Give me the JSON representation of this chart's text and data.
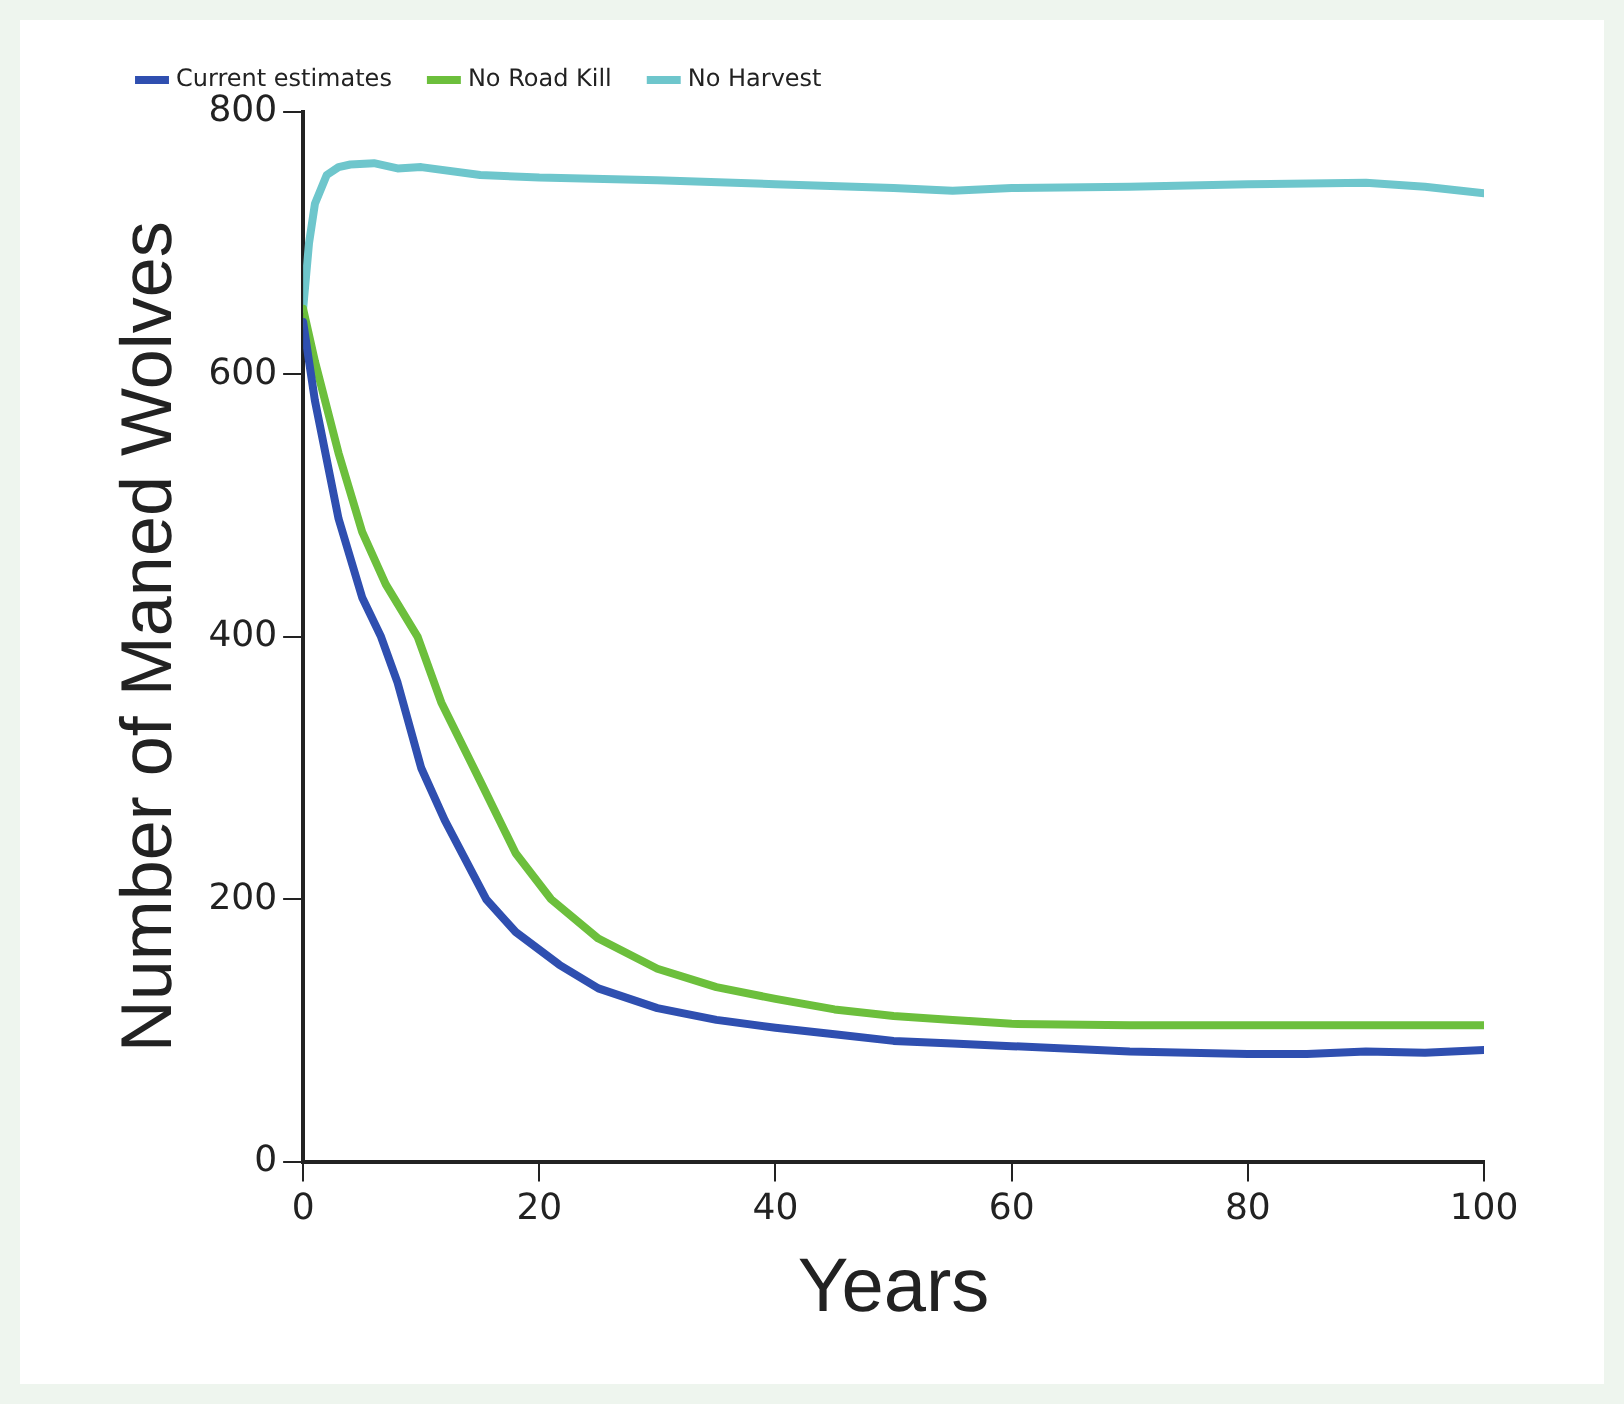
{
  "chart_data": {
    "type": "line",
    "xlabel": "Years",
    "ylabel": "Number of Maned Wolves",
    "xlim": [
      0,
      100
    ],
    "ylim": [
      0,
      800
    ],
    "xticks": [
      0,
      20,
      40,
      60,
      80,
      100
    ],
    "yticks": [
      0,
      200,
      400,
      600,
      800
    ],
    "legend": "top",
    "grid": false,
    "marker": "none",
    "series": [
      {
        "name": "Current estimates",
        "color": "#2f4fb0",
        "x": [
          0,
          1,
          3,
          5,
          6.6,
          8,
          10,
          12,
          15.5,
          18,
          21.7,
          25,
          30,
          35,
          40,
          45,
          50,
          55,
          60,
          70,
          80,
          85,
          90,
          95,
          100
        ],
        "values": [
          640,
          580,
          490,
          430,
          400,
          365,
          300,
          260,
          200,
          175,
          150,
          132,
          117,
          108,
          102,
          97,
          92,
          90,
          88,
          84,
          82,
          82,
          84,
          83,
          85
        ]
      },
      {
        "name": "No Road Kill",
        "color": "#6cbf3c",
        "x": [
          0,
          1,
          3,
          5,
          7,
          9.7,
          11.7,
          15,
          18,
          21,
          25,
          30,
          35,
          40,
          45,
          50,
          55,
          60,
          70,
          80,
          90,
          100
        ],
        "values": [
          650,
          610,
          540,
          480,
          440,
          400,
          350,
          290,
          235,
          200,
          170,
          147,
          133,
          124,
          116,
          111,
          108,
          105,
          104,
          104,
          104,
          104
        ]
      },
      {
        "name": "No Harvest",
        "color": "#6ec6cc",
        "x": [
          0,
          0.5,
          1,
          2,
          3,
          4,
          6,
          8,
          10,
          15,
          20,
          30,
          40,
          50,
          55,
          60,
          70,
          80,
          90,
          95,
          100
        ],
        "values": [
          650,
          700,
          730,
          752,
          758,
          760,
          761,
          757,
          758,
          752,
          750,
          748,
          745,
          742,
          740,
          742,
          743,
          745,
          746,
          743,
          738
        ]
      }
    ]
  }
}
